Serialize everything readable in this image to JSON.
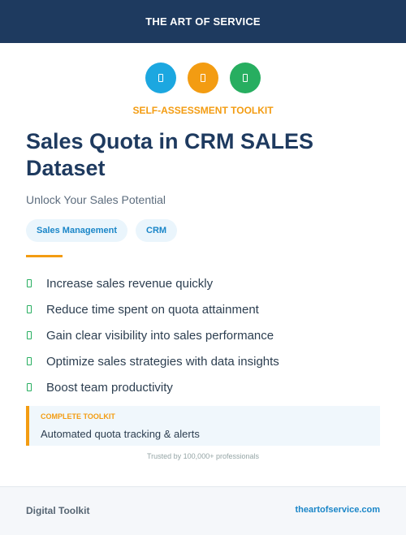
{
  "header": {
    "title": "THE ART OF SERVICE"
  },
  "icons": [
    {
      "name": "doc-icon",
      "color": "#1ca7e0"
    },
    {
      "name": "doc-icon",
      "color": "#f39c12"
    },
    {
      "name": "doc-icon",
      "color": "#27ae60"
    }
  ],
  "kicker": "SELF-ASSESSMENT TOOLKIT",
  "title": "Sales Quota in CRM SALES Dataset",
  "subtitle": "Unlock Your Sales Potential",
  "tags": [
    "Sales Management",
    "CRM"
  ],
  "features": [
    "Increase sales revenue quickly",
    "Reduce time spent on quota attainment",
    "Gain clear visibility into sales performance",
    "Optimize sales strategies with data insights",
    "Boost team productivity"
  ],
  "callout": {
    "label": "COMPLETE TOOLKIT",
    "text": "Automated quota tracking & alerts"
  },
  "trust": "Trusted by 100,000+ professionals",
  "footer": {
    "left": "Digital Toolkit",
    "right": "theartofservice.com"
  }
}
